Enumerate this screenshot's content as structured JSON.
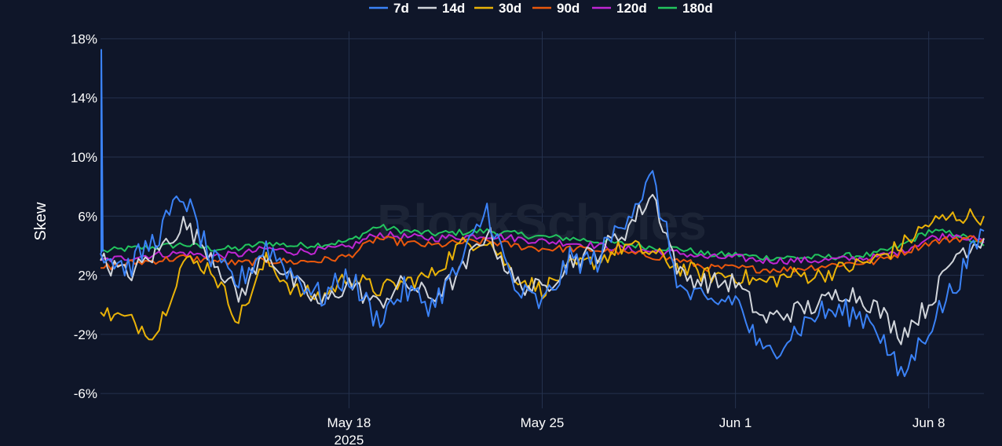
{
  "watermark": "BlockScholes",
  "chart_data": {
    "type": "line",
    "title": "",
    "xlabel": "",
    "ylabel": "Skew",
    "x_range": [
      "2025-05-09",
      "2025-06-10"
    ],
    "ylim": [
      -7,
      18.5
    ],
    "y_ticks": [
      -6,
      -2,
      2,
      6,
      10,
      14,
      18
    ],
    "y_tick_labels": [
      "-6%",
      "-2%",
      "2%",
      "6%",
      "10%",
      "14%",
      "18%"
    ],
    "x_ticks": [
      "2025-05-18",
      "2025-05-25",
      "2025-06-01",
      "2025-06-08"
    ],
    "x_tick_labels": [
      "May 18",
      "May 25",
      "Jun 1",
      "Jun 8"
    ],
    "x_tick_sublabel": "2025",
    "grid": true,
    "legend_position": "top-center",
    "x": [
      "2025-05-09",
      "2025-05-10",
      "2025-05-11",
      "2025-05-12",
      "2025-05-13",
      "2025-05-14",
      "2025-05-15",
      "2025-05-16",
      "2025-05-17",
      "2025-05-18",
      "2025-05-19",
      "2025-05-20",
      "2025-05-21",
      "2025-05-22",
      "2025-05-23",
      "2025-05-24",
      "2025-05-25",
      "2025-05-26",
      "2025-05-27",
      "2025-05-28",
      "2025-05-29",
      "2025-05-30",
      "2025-05-31",
      "2025-06-01",
      "2025-06-02",
      "2025-06-03",
      "2025-06-04",
      "2025-06-05",
      "2025-06-06",
      "2025-06-07",
      "2025-06-08",
      "2025-06-09",
      "2025-06-10"
    ],
    "series": [
      {
        "name": "7d",
        "color": "#3b82f6",
        "values": [
          3.5,
          2.5,
          4.5,
          7.5,
          3.0,
          1.5,
          4.0,
          2.0,
          0.5,
          2.0,
          -1.0,
          1.0,
          0.0,
          2.5,
          6.5,
          1.0,
          0.0,
          3.0,
          3.0,
          6.0,
          8.5,
          1.0,
          0.0,
          0.5,
          -3.5,
          -2.0,
          -0.5,
          -0.5,
          -1.0,
          -5.0,
          -1.5,
          1.5,
          5.0
        ]
      },
      {
        "name": "14d",
        "color": "#d1d5db",
        "values": [
          3.0,
          2.0,
          3.5,
          5.5,
          3.5,
          0.5,
          3.5,
          1.5,
          0.0,
          1.5,
          0.0,
          1.5,
          0.5,
          2.0,
          5.0,
          1.5,
          1.0,
          3.0,
          3.5,
          5.0,
          7.5,
          2.0,
          1.5,
          1.5,
          -1.0,
          -0.5,
          0.0,
          1.0,
          0.0,
          -2.0,
          0.0,
          3.5,
          4.5
        ]
      },
      {
        "name": "30d",
        "color": "#eab308",
        "values": [
          -0.5,
          -1.0,
          -2.0,
          3.0,
          2.5,
          -1.0,
          3.0,
          1.0,
          0.5,
          2.0,
          1.0,
          1.5,
          2.0,
          4.0,
          4.5,
          2.0,
          1.0,
          2.5,
          3.0,
          4.0,
          3.5,
          2.5,
          2.0,
          2.0,
          1.5,
          2.0,
          2.0,
          2.5,
          3.0,
          4.0,
          5.5,
          6.0,
          6.0
        ]
      },
      {
        "name": "90d",
        "color": "#ea580c",
        "values": [
          2.5,
          2.8,
          3.0,
          3.2,
          3.0,
          2.8,
          3.0,
          2.9,
          3.0,
          3.3,
          4.5,
          4.2,
          4.0,
          4.2,
          4.3,
          4.0,
          3.8,
          3.8,
          3.7,
          3.5,
          3.3,
          3.0,
          2.5,
          2.5,
          2.4,
          2.4,
          2.6,
          2.8,
          2.9,
          3.5,
          4.2,
          4.5,
          4.5
        ]
      },
      {
        "name": "120d",
        "color": "#c026d3",
        "values": [
          3.0,
          3.2,
          3.4,
          3.5,
          3.3,
          3.4,
          3.8,
          3.6,
          3.7,
          3.9,
          4.8,
          4.6,
          4.5,
          4.6,
          4.7,
          4.5,
          4.3,
          4.2,
          4.0,
          3.8,
          3.6,
          3.5,
          3.2,
          3.2,
          3.0,
          3.0,
          3.0,
          3.1,
          3.2,
          3.6,
          4.5,
          4.8,
          4.2
        ]
      },
      {
        "name": "180d",
        "color": "#22c55e",
        "values": [
          3.6,
          3.8,
          3.9,
          4.1,
          3.8,
          3.8,
          4.2,
          4.0,
          4.1,
          4.3,
          5.3,
          5.0,
          4.8,
          4.9,
          5.0,
          4.8,
          4.6,
          4.5,
          4.3,
          4.1,
          3.9,
          3.8,
          3.4,
          3.4,
          3.2,
          3.2,
          3.2,
          3.3,
          3.4,
          4.0,
          5.0,
          4.8,
          4.0
        ]
      }
    ]
  }
}
